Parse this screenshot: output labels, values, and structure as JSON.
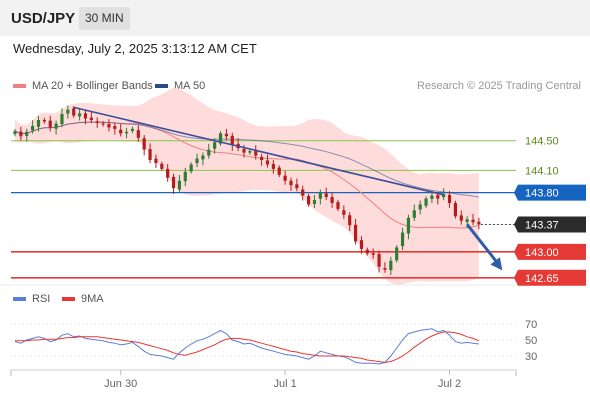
{
  "header": {
    "symbol": "USD/JPY",
    "timeframe": "30 MIN"
  },
  "timestamp": "Wednesday, July 2, 2025 3:13:12 AM CET",
  "legend": {
    "ma20_label": "MA 20 + Bollinger Bands",
    "ma50_label": "MA 50",
    "credit": "Research © 2025 Trading Central",
    "rsi_label": "RSI",
    "ma9_label": "9MA"
  },
  "colors": {
    "up": "#2e7d32",
    "down": "#b71c1c",
    "ma20": "#f08080",
    "band_fill": "#ffd6d6",
    "ma50": "#2b4a8a",
    "resistance_line": "#1565c0",
    "support_line": "#e53935",
    "green_level": "#8bc34a",
    "rsi": "#5b7fd6",
    "rsi_ma": "#e53935",
    "arrow": "#2e5da8"
  },
  "chart_data": [
    {
      "type": "candlestick",
      "yaxis_levels": [
        {
          "value": 144.5,
          "label": "144.50",
          "style": "green-line"
        },
        {
          "value": 144.1,
          "label": "144.10",
          "style": "green-line"
        },
        {
          "value": 143.8,
          "label": "143.80",
          "style": "blue-badge"
        },
        {
          "value": 143.37,
          "label": "143.37",
          "style": "current-price"
        },
        {
          "value": 143.0,
          "label": "143.00",
          "style": "red-badge"
        },
        {
          "value": 142.65,
          "label": "142.65",
          "style": "red-badge"
        }
      ],
      "ylim": [
        142.62,
        145.05
      ],
      "xlabels": [
        {
          "label": "Jun 30",
          "bar": 18
        },
        {
          "label": "Jul 1",
          "bar": 46
        },
        {
          "label": "Jul 2",
          "bar": 74
        }
      ],
      "n_bars": 80,
      "close": [
        144.63,
        144.56,
        144.62,
        144.7,
        144.78,
        144.76,
        144.68,
        144.73,
        144.86,
        144.92,
        144.84,
        144.87,
        144.8,
        144.78,
        144.74,
        144.72,
        144.68,
        144.66,
        144.6,
        144.62,
        144.66,
        144.54,
        144.38,
        144.24,
        144.2,
        144.12,
        144.0,
        143.86,
        143.96,
        144.08,
        144.18,
        144.26,
        144.3,
        144.38,
        144.48,
        144.6,
        144.56,
        144.44,
        144.4,
        144.34,
        144.36,
        144.3,
        144.24,
        144.18,
        144.12,
        144.04,
        143.96,
        143.9,
        143.86,
        143.76,
        143.64,
        143.7,
        143.8,
        143.74,
        143.66,
        143.58,
        143.5,
        143.36,
        143.14,
        143.04,
        142.98,
        142.96,
        142.8,
        142.76,
        142.88,
        143.06,
        143.26,
        143.46,
        143.56,
        143.64,
        143.72,
        143.76,
        143.72,
        143.78,
        143.66,
        143.48,
        143.42,
        143.44,
        143.4,
        143.37
      ],
      "trendline": {
        "from": {
          "bar": 10,
          "value": 144.95
        },
        "to": {
          "bar": 73,
          "value": 143.77
        }
      },
      "projection": {
        "from": {
          "bar": 77,
          "value": 143.37
        },
        "to": {
          "bar": 83,
          "value": 142.75
        }
      }
    },
    {
      "type": "line",
      "name": "RSI panel",
      "yticks": [
        70,
        50,
        30
      ],
      "ylim": [
        20,
        80
      ],
      "series": [
        {
          "name": "RSI",
          "values": [
            48,
            46,
            50,
            52,
            54,
            52,
            48,
            50,
            56,
            58,
            54,
            55,
            52,
            51,
            50,
            49,
            47,
            46,
            44,
            45,
            47,
            42,
            36,
            32,
            31,
            30,
            28,
            26,
            34,
            40,
            45,
            49,
            51,
            54,
            58,
            62,
            58,
            50,
            48,
            45,
            46,
            43,
            40,
            38,
            36,
            34,
            32,
            31,
            30,
            28,
            26,
            30,
            36,
            34,
            32,
            30,
            29,
            26,
            22,
            21,
            21,
            21,
            20,
            22,
            30,
            40,
            50,
            58,
            60,
            62,
            63,
            64,
            60,
            62,
            56,
            48,
            46,
            47,
            46,
            45
          ]
        },
        {
          "name": "9MA",
          "values": [
            49,
            49,
            49,
            50,
            50,
            51,
            51,
            51,
            52,
            53,
            53,
            54,
            54,
            54,
            54,
            53,
            52,
            51,
            50,
            49,
            48,
            47,
            45,
            43,
            41,
            39,
            37,
            34,
            32,
            31,
            33,
            35,
            38,
            41,
            44,
            48,
            51,
            52,
            52,
            51,
            50,
            48,
            46,
            44,
            42,
            40,
            38,
            36,
            35,
            33,
            32,
            31,
            30,
            30,
            30,
            30,
            30,
            29,
            28,
            27,
            25,
            24,
            23,
            22,
            23,
            26,
            30,
            35,
            41,
            46,
            51,
            55,
            58,
            60,
            60,
            59,
            57,
            54,
            52,
            49
          ]
        }
      ]
    }
  ]
}
